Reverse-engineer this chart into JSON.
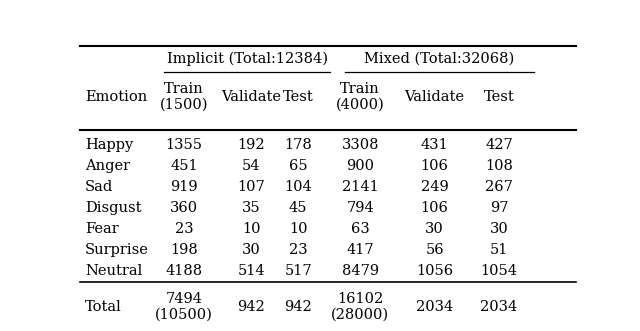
{
  "title_implicit": "Implicit (Total:12384)",
  "title_mixed": "Mixed (Total:32068)",
  "col_headers": [
    "Emotion",
    "Train\n(1500)",
    "Validate",
    "Test",
    "Train\n(4000)",
    "Validate",
    "Test"
  ],
  "rows": [
    [
      "Happy",
      "1355",
      "192",
      "178",
      "3308",
      "431",
      "427"
    ],
    [
      "Anger",
      "451",
      "54",
      "65",
      "900",
      "106",
      "108"
    ],
    [
      "Sad",
      "919",
      "107",
      "104",
      "2141",
      "249",
      "267"
    ],
    [
      "Disgust",
      "360",
      "35",
      "45",
      "794",
      "106",
      "97"
    ],
    [
      "Fear",
      "23",
      "10",
      "10",
      "63",
      "30",
      "30"
    ],
    [
      "Surprise",
      "198",
      "30",
      "23",
      "417",
      "56",
      "51"
    ],
    [
      "Neutral",
      "4188",
      "514",
      "517",
      "8479",
      "1056",
      "1054"
    ]
  ],
  "total_row": [
    "Total",
    "7494\n(10500)",
    "942",
    "942",
    "16102\n(28000)",
    "2034",
    "2034"
  ],
  "figsize": [
    6.4,
    3.31
  ],
  "dpi": 100,
  "bg_color": "#ffffff",
  "text_color": "#000000",
  "font_size": 10.5,
  "header_font_size": 10.5
}
